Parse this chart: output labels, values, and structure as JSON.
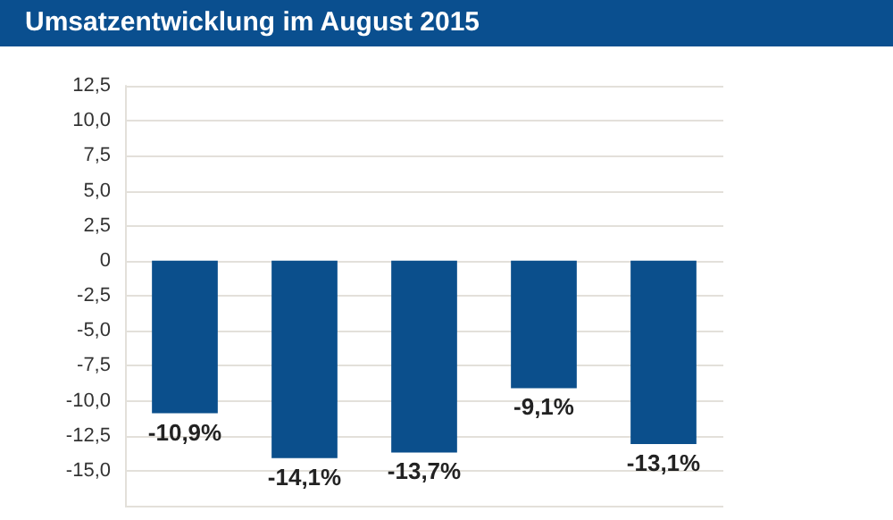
{
  "chart_data": {
    "type": "bar",
    "title": "Umsatzentwicklung im August 2015",
    "categories": [
      null,
      null,
      null,
      null,
      null
    ],
    "values": [
      -10.9,
      -14.1,
      -13.7,
      -9.1,
      -13.1
    ],
    "value_labels": [
      "-10,9%",
      "-14,1%",
      "-13,7%",
      "-9,1%",
      "-13,1%"
    ],
    "color": "#0b4f8c",
    "ylim": [
      -17.5,
      12.5
    ],
    "yticks": [
      {
        "value": -17.5,
        "label": null
      },
      {
        "value": -15,
        "label": "-15,0"
      },
      {
        "value": -12.5,
        "label": "-12,5"
      },
      {
        "value": -10,
        "label": "-10,0"
      },
      {
        "value": -7.5,
        "label": "-7,5"
      },
      {
        "value": -5,
        "label": "-5,0"
      },
      {
        "value": -2.5,
        "label": "-2,5"
      },
      0,
      {
        "value": 2.5,
        "label": "2,5"
      },
      {
        "value": 5,
        "label": "5,0"
      },
      {
        "value": 7.5,
        "label": "7,5"
      },
      {
        "value": 10,
        "label": "10,0"
      },
      {
        "value": 12.5,
        "label": "12,5"
      }
    ],
    "grid": "y"
  }
}
